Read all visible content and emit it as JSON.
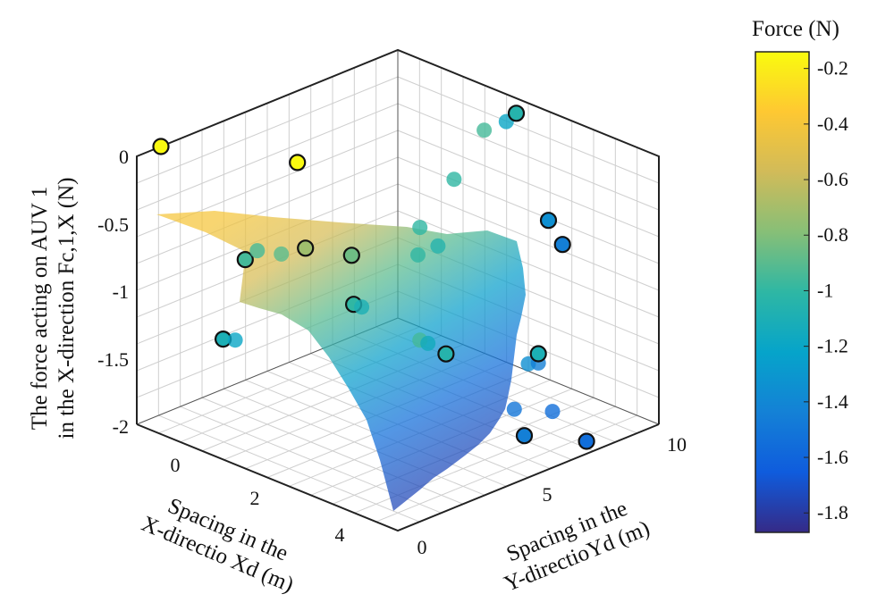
{
  "chart_data": {
    "type": "scatter",
    "subtype": "3d-surface-with-points",
    "zlabel_lines": [
      "The force acting on AUV 1",
      "in the X-direction Fc,1,X (N)"
    ],
    "xlabel_lines": [
      "Spacing in the",
      "X-directio Xd (m)"
    ],
    "ylabel_lines": [
      "Spacing in the",
      "Y-directioYd (m)"
    ],
    "colorbar_title": "Force (N)",
    "colorbar_ticks": [
      "-0.2",
      "-0.4",
      "-0.6",
      "-0.8",
      "-1",
      "-1.2",
      "-1.4",
      "-1.6",
      "-1.8"
    ],
    "colorbar_range": [
      -1.87,
      -0.14
    ],
    "z_ticks": [
      "0",
      "-0.5",
      "-1",
      "-1.5",
      "-2"
    ],
    "x_ticks": [
      "0",
      "2",
      "4"
    ],
    "y_ticks": [
      "0",
      "5",
      "10"
    ],
    "xlim": [
      -1,
      5.5
    ],
    "ylim": [
      -1,
      12
    ],
    "zlim": [
      -2,
      0
    ],
    "grid": true,
    "colormap": [
      "#352a87",
      "#0f5cdd",
      "#1481d6",
      "#06a4ca",
      "#2eb7a4",
      "#87bf77",
      "#d1bb59",
      "#fec832",
      "#f9fb0e"
    ],
    "surface": {
      "color_values": [
        -0.4,
        -0.55,
        -0.9,
        -1.25,
        -1.55,
        -1.75
      ],
      "opacity": 0.72
    },
    "points": [
      {
        "x": -1.0,
        "y": 0.2,
        "z": 0.0,
        "value": -0.15,
        "outlined": true
      },
      {
        "x": -0.9,
        "y": 6.8,
        "z": -0.51,
        "value": -0.15,
        "outlined": true
      },
      {
        "x": -0.6,
        "y": 6.6,
        "z": -1.1,
        "value": -0.72,
        "outlined": true
      },
      {
        "x": -1.0,
        "y": 4.4,
        "z": -1.1,
        "value": -0.95,
        "outlined": true
      },
      {
        "x": -1.0,
        "y": 5.0,
        "z": -1.07,
        "value": -0.95,
        "outlined": false
      },
      {
        "x": -0.8,
        "y": 5.8,
        "z": -1.12,
        "value": -0.9,
        "outlined": false
      },
      {
        "x": 0.4,
        "y": 6.9,
        "z": -1.05,
        "value": -0.85,
        "outlined": true
      },
      {
        "x": 0.9,
        "y": 6.0,
        "z": -1.3,
        "value": -1.0,
        "outlined": true
      },
      {
        "x": 1.0,
        "y": 6.2,
        "z": -1.32,
        "value": -1.1,
        "outlined": false
      },
      {
        "x": 1.3,
        "y": 8.5,
        "z": -0.83,
        "value": -1.0,
        "outlined": false
      },
      {
        "x": 1.5,
        "y": 8.0,
        "z": -0.98,
        "value": -1.0,
        "outlined": false
      },
      {
        "x": 1.6,
        "y": 8.8,
        "z": -0.95,
        "value": -1.05,
        "outlined": false
      },
      {
        "x": 1.4,
        "y": 10.0,
        "z": -0.55,
        "value": -1.0,
        "outlined": false
      },
      {
        "x": 1.5,
        "y": 11.3,
        "z": -0.25,
        "value": -0.95,
        "outlined": false
      },
      {
        "x": 1.8,
        "y": 11.8,
        "z": -0.18,
        "value": -1.2,
        "outlined": false
      },
      {
        "x": 2.0,
        "y": 11.9,
        "z": -0.1,
        "value": -1.05,
        "outlined": true
      },
      {
        "x": 2.0,
        "y": 7.1,
        "z": -1.5,
        "value": -0.95,
        "outlined": false
      },
      {
        "x": 2.5,
        "y": 7.4,
        "z": -1.56,
        "value": -1.05,
        "outlined": true
      },
      {
        "x": 2.2,
        "y": 7.1,
        "z": -1.5,
        "value": -1.15,
        "outlined": false
      },
      {
        "x": 2.6,
        "y": 12.3,
        "z": -0.85,
        "value": -1.35,
        "outlined": true
      },
      {
        "x": 2.9,
        "y": 12.4,
        "z": -1.0,
        "value": -1.45,
        "outlined": true
      },
      {
        "x": 3.5,
        "y": 9.5,
        "z": -1.64,
        "value": -1.35,
        "outlined": false
      },
      {
        "x": 3.6,
        "y": 9.8,
        "z": -1.64,
        "value": -1.45,
        "outlined": false
      },
      {
        "x": 3.4,
        "y": 10.2,
        "z": -1.62,
        "value": -1.1,
        "outlined": true
      },
      {
        "x": 4.6,
        "y": 8.5,
        "z": -1.8,
        "value": -1.55,
        "outlined": false
      },
      {
        "x": 4.1,
        "y": 7.6,
        "z": -1.79,
        "value": -1.5,
        "outlined": false
      },
      {
        "x": 5.2,
        "y": 9.0,
        "z": -1.98,
        "value": -1.55,
        "outlined": true
      },
      {
        "x": 5.4,
        "y": 5.5,
        "z": -1.7,
        "value": -1.45,
        "outlined": true
      },
      {
        "x": 0.5,
        "y": 0.3,
        "z": -1.26,
        "value": -1.1,
        "outlined": true
      },
      {
        "x": 0.6,
        "y": 0.7,
        "z": -1.28,
        "value": -1.2,
        "outlined": false
      }
    ]
  }
}
